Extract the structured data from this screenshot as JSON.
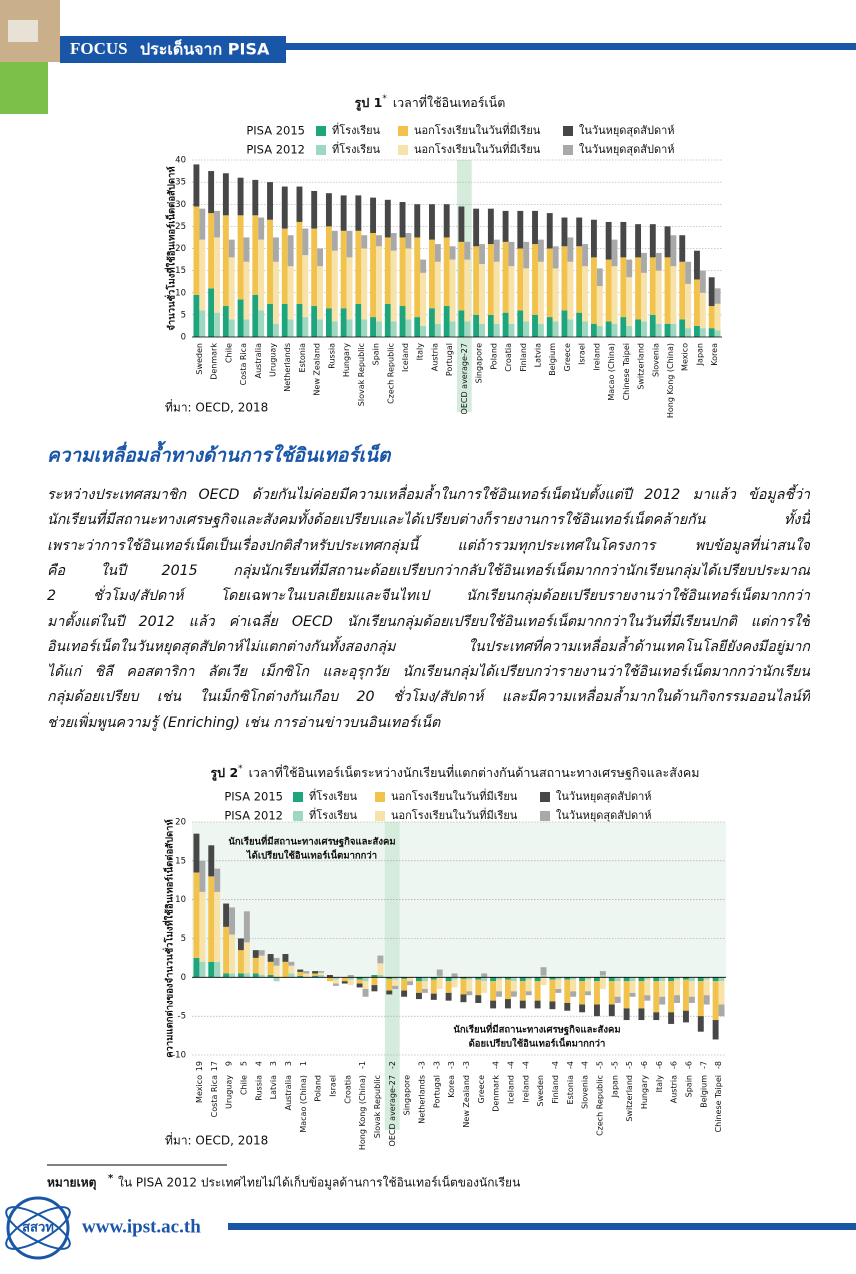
{
  "header": {
    "label": "FOCUS",
    "title": "ประเด็นจาก PISA"
  },
  "chart_data": [
    {
      "type": "bar",
      "figure_label": "รูป 1",
      "figure_mark": "*",
      "title": "เวลาที่ใช้อินเทอร์เน็ต",
      "ylabel": "จำนวนชั่วโมงที่ใช้อินเทอร์เน็ตต่อสัปดาห์",
      "categories": [
        "Sweden",
        "Denmark",
        "Chile",
        "Costa Rica",
        "Australia",
        "Uruguay",
        "Netherlands",
        "Estonia",
        "New Zealand",
        "Russia",
        "Hungary",
        "Slovak Republic",
        "Spain",
        "Czech Republic",
        "Iceland",
        "Italy",
        "Austria",
        "Portugal",
        "OECD average-27",
        "Singapore",
        "Poland",
        "Croatia",
        "Finland",
        "Latvia",
        "Belgium",
        "Greece",
        "Israel",
        "Ireland",
        "Macao (China)",
        "Chinese Taipei",
        "Switzerland",
        "Slovenia",
        "Hong Kong (China)",
        "Mexico",
        "Japan",
        "Korea"
      ],
      "highlight_index": 18,
      "ylim": [
        0,
        40
      ],
      "yticks": [
        0,
        5,
        10,
        15,
        20,
        25,
        30,
        35,
        40
      ],
      "grid": true,
      "series_groups": [
        {
          "name": "PISA 2015",
          "series": [
            {
              "name": "ที่โรงเรียน",
              "color": "#1fa57c",
              "values": [
                9.5,
                11,
                7,
                8.5,
                9.5,
                7.5,
                7.5,
                7.5,
                7,
                6.5,
                6.5,
                7.5,
                4.5,
                7.5,
                7,
                4.5,
                6.5,
                7,
                6,
                5,
                5,
                5.5,
                6,
                5,
                4.5,
                6,
                5.5,
                3,
                3.5,
                4.5,
                4,
                5,
                3,
                4,
                2.5,
                2
              ]
            },
            {
              "name": "นอกโรงเรียนในวันที่มีเรียน",
              "color": "#f1c24c",
              "values": [
                20,
                17,
                20.5,
                19,
                18,
                19,
                17,
                18.5,
                17.5,
                18.5,
                17.5,
                16.5,
                19,
                15,
                15.5,
                18,
                15.5,
                15.5,
                15.5,
                15.5,
                16,
                16,
                14,
                16,
                15.5,
                14.5,
                15,
                15,
                14,
                13.5,
                14,
                13,
                15,
                13,
                10.5,
                5
              ]
            },
            {
              "name": "ในวันหยุดสุดสัปดาห์",
              "color": "#474747",
              "values": [
                9.5,
                9.5,
                9.5,
                8.5,
                8,
                8.5,
                9.5,
                8,
                8.5,
                7.5,
                8,
                8,
                8,
                8.5,
                8,
                7.5,
                8,
                7.5,
                8,
                8.5,
                8,
                7,
                8.5,
                7.5,
                8,
                6.5,
                6.5,
                8.5,
                8.5,
                8,
                7.5,
                7.5,
                7,
                6,
                6.5,
                6.5
              ]
            }
          ]
        },
        {
          "name": "PISA 2012",
          "series": [
            {
              "name": "ที่โรงเรียน",
              "color": "#9fd8c0",
              "values": [
                6,
                5.5,
                4,
                4,
                6,
                3,
                4,
                4.5,
                4,
                3.5,
                4,
                4,
                3.5,
                3.5,
                4,
                2.5,
                3,
                3.5,
                3.5,
                3,
                3,
                3,
                3.5,
                3,
                3.5,
                4,
                3.5,
                2.5,
                3,
                2.5,
                3.5,
                3,
                3,
                2,
                2,
                1.5
              ]
            },
            {
              "name": "นอกโรงเรียนในวันที่มีเรียน",
              "color": "#f7e2a9",
              "values": [
                16,
                17,
                14,
                13,
                16,
                14,
                12,
                14,
                12,
                16,
                14,
                16,
                17,
                16,
                16,
                12,
                14,
                14,
                14,
                13.5,
                14,
                13,
                12,
                14,
                12,
                13,
                12.5,
                9,
                13,
                11,
                11,
                12,
                13,
                10,
                8,
                6
              ]
            },
            {
              "name": "ในวันหยุดสุดสัปดาห์",
              "color": "#a9a9a9",
              "values": [
                7,
                6,
                4,
                5.5,
                5,
                5.5,
                7,
                6,
                4,
                4.5,
                6,
                3,
                2.5,
                4,
                3.5,
                3,
                4,
                3,
                4,
                4.5,
                5,
                5.5,
                6,
                5,
                5,
                5.5,
                5,
                4,
                6,
                4,
                4.5,
                4,
                7,
                5,
                5,
                3.5
              ]
            }
          ]
        }
      ],
      "source": "ที่มา: OECD, 2018"
    },
    {
      "type": "bar",
      "figure_label": "รูป 2",
      "figure_mark": "*",
      "title": "เวลาที่ใช้อินเทอร์เน็ตระหว่างนักเรียนที่แตกต่างกันด้านสถานะทางเศรษฐกิจและสังคม",
      "ylabel": "ความแตกต่างของจำนวนชั่วโมงที่ใช้อินเทอร์เน็ตต่อสัปดาห์",
      "categories": [
        "Mexico",
        "Costa Rica",
        "Uruguay",
        "Chile",
        "Russia",
        "Latvia",
        "Australia",
        "Macao (China)",
        "Poland",
        "Israel",
        "Croatia",
        "Hong Kong (China)",
        "Slovak Republic",
        "OECD average-27",
        "Singapore",
        "Netherlands",
        "Portugal",
        "Korea",
        "New Zealand",
        "Greece",
        "Denmark",
        "Iceland",
        "Ireland",
        "Sweden",
        "Finland",
        "Estonia",
        "Slovenia",
        "Czech Republic",
        "Japan",
        "Switzerland",
        "Hungary",
        "Italy",
        "Austria",
        "Spain",
        "Belgium",
        "Chinese Taipei"
      ],
      "difference_labels": [
        19,
        17,
        9,
        5,
        4,
        3,
        3,
        1,
        null,
        null,
        null,
        -1,
        null,
        -2,
        null,
        -3,
        -3,
        -3,
        -3,
        null,
        -4,
        -4,
        -4,
        null,
        -4,
        -4,
        -4,
        -5,
        -5,
        -5,
        -6,
        -6,
        -6,
        -6,
        -7,
        -8
      ],
      "highlight_index": 13,
      "ylim": [
        -10,
        20
      ],
      "yticks": [
        -10,
        -5,
        0,
        5,
        10,
        15,
        20
      ],
      "grid": true,
      "annotations": [
        {
          "lines": [
            "นักเรียนที่มีสถานะทางเศรษฐกิจและสังคม",
            "ได้เปรียบใช้อินเทอร์เน็ตมากกว่า"
          ]
        },
        {
          "lines": [
            "นักเรียนที่มีสถานะทางเศรษฐกิจและสังคม",
            "ด้อยเปรียบใช้อินเทอร์เน็ตมากกว่า"
          ]
        }
      ],
      "series_groups": [
        {
          "name": "PISA 2015",
          "series": [
            {
              "name": "ที่โรงเรียน",
              "color": "#1fa57c",
              "values": [
                2.5,
                2,
                0.5,
                0.5,
                0.5,
                0.3,
                0,
                0.2,
                0.2,
                0,
                0,
                -0.3,
                0.3,
                -0.2,
                -0.2,
                -0.5,
                -0.3,
                -0.5,
                -0.2,
                -0.3,
                -0.5,
                -0.3,
                -0.5,
                -0.5,
                -0.3,
                -0.3,
                -0.5,
                -0.5,
                -0.5,
                -0.5,
                -0.5,
                -0.5,
                -0.5,
                -0.3,
                -0.5,
                -0.5
              ]
            },
            {
              "name": "นอกโรงเรียนในวันที่มีเรียน",
              "color": "#f1c24c",
              "values": [
                11,
                11,
                6,
                3,
                2,
                1.7,
                2,
                0.5,
                0.3,
                -0.5,
                -0.5,
                -0.5,
                -1,
                -1.5,
                -1.5,
                -1.5,
                -1.8,
                -1.5,
                -2,
                -2,
                -2.5,
                -2.5,
                -2.5,
                -2.5,
                -2.8,
                -3,
                -3,
                -3,
                -3,
                -3.5,
                -3.5,
                -4,
                -4,
                -4,
                -4.5,
                -5
              ]
            },
            {
              "name": "ในวันหยุดสุดสัปดาห์",
              "color": "#474747",
              "values": [
                5,
                4,
                3,
                1.5,
                1,
                1,
                1,
                0.3,
                0.3,
                0.3,
                -0.3,
                -0.5,
                -0.8,
                -0.5,
                -0.8,
                -0.8,
                -0.8,
                -1,
                -1,
                -1,
                -1,
                -1.2,
                -1,
                -1,
                -1,
                -1,
                -1,
                -1.5,
                -1.5,
                -1.5,
                -1.5,
                -1,
                -1.5,
                -1.5,
                -2,
                -2.5
              ]
            }
          ]
        },
        {
          "name": "PISA 2012",
          "series": [
            {
              "name": "ที่โรงเรียน",
              "color": "#9fd8c0",
              "values": [
                2,
                2,
                0.5,
                0.5,
                0.3,
                -0.5,
                0.5,
                0,
                0.3,
                -0.3,
                -0.3,
                -0.5,
                0.3,
                -0.3,
                0,
                -0.5,
                0.2,
                -0.3,
                -0.3,
                -0.5,
                -0.3,
                -0.5,
                -0.3,
                0.3,
                -0.3,
                -0.3,
                -0.3,
                0.3,
                -0.5,
                -0.5,
                -0.3,
                -0.5,
                -0.3,
                -0.5,
                -0.3,
                -0.5
              ]
            },
            {
              "name": "นอกโรงเรียนในวันที่มีเรียน",
              "color": "#f7e2a9",
              "values": [
                9,
                9,
                5,
                4,
                2.5,
                1.5,
                1,
                0.5,
                0.3,
                -0.5,
                -0.7,
                -1,
                1.5,
                -0.8,
                -0.5,
                -1,
                -1.5,
                -1,
                -1.5,
                -1.5,
                -1.5,
                -1.3,
                -1.5,
                -1,
                -1.2,
                -1.5,
                -1.5,
                -1.5,
                -2,
                -1.5,
                -2,
                -2,
                -2,
                -2,
                -2,
                -3
              ]
            },
            {
              "name": "ในวันหยุดสุดสัปดาห์",
              "color": "#a9a9a9",
              "values": [
                4,
                3,
                3.5,
                4,
                0.7,
                1,
                0.5,
                0.3,
                0.2,
                -0.3,
                0.3,
                -1,
                1,
                -0.4,
                -0.5,
                -0.5,
                0.8,
                0.5,
                -0.5,
                0.5,
                -0.7,
                -0.7,
                -0.5,
                1,
                -0.5,
                -0.7,
                -0.5,
                0.5,
                -0.8,
                -0.5,
                -0.7,
                -1,
                -1,
                -0.8,
                -1.2,
                -1.5
              ]
            }
          ]
        }
      ],
      "source": "ที่มา: OECD, 2018"
    }
  ],
  "section": {
    "heading": "ความเหลื่อมล้ำทางด้านการใช้อินเทอร์เน็ต",
    "lines": [
      "ระหว่างประเทศสมาชิก OECD ด้วยกันไม่ค่อยมีความเหลื่อมล้ำในการใช้อินเทอร์เน็ตนับตั้งแต่ปี 2012 มาแล้ว ข้อมูลชี้ว่า",
      "นักเรียนที่มีสถานะทางเศรษฐกิจและสังคมทั้งด้อยเปรียบและได้เปรียบต่างก็รายงานการใช้อินเทอร์เน็ตคล้ายกัน ทั้งนี้",
      "เพราะว่าการใช้อินเทอร์เน็ตเป็นเรื่องปกติสำหรับประเทศกลุ่มนี้  แต่ถ้ารวมทุกประเทศในโครงการ พบข้อมูลที่น่าสนใจ",
      "คือ ในปี 2015 กลุ่มนักเรียนที่มีสถานะด้อยเปรียบกว่ากลับใช้อินเทอร์เน็ตมากกว่านักเรียนกลุ่มได้เปรียบประมาณ",
      "2 ชั่วโมง/สัปดาห์  โดยเฉพาะในเบลเยียมและจีนไทเป นักเรียนกลุ่มด้อยเปรียบรายงานว่าใช้อินเทอร์เน็ตมากกว่า",
      "มาตั้งแต่ในปี 2012 แล้ว  ค่าเฉลี่ย OECD นักเรียนกลุ่มด้อยเปรียบใช้อินเทอร์เน็ตมากกว่าในวันที่มีเรียนปกติ แต่การใช้",
      "อินเทอร์เน็ตในวันหยุดสุดสัปดาห์ไม่แตกต่างกันทั้งสองกลุ่ม  ในประเทศที่ความเหลื่อมล้ำด้านเทคโนโลยียังคงมีอยู่มาก",
      "ได้แก่ ชิลี คอสตาริกา ลัตเวีย เม็กซิโก และอุรุกวัย นักเรียนกลุ่มได้เปรียบกว่ารายงานว่าใช้อินเทอร์เน็ตมากกว่านักเรียน",
      "กลุ่มด้อยเปรียบ เช่น ในเม็กซิโกต่างกันเกือบ 20 ชั่วโมง/สัปดาห์ และมีความเหลื่อมล้ำมากในด้านกิจกรรมออนไลน์ที่",
      "ช่วยเพิ่มพูนความรู้ (Enriching) เช่น การอ่านข่าวบนอินเทอร์เน็ต"
    ]
  },
  "note": {
    "label": "หมายเหตุ",
    "mark": "*",
    "text": "ใน PISA 2012 ประเทศไทยไม่ได้เก็บข้อมูลด้านการใช้อินเทอร์เน็ตของนักเรียน"
  },
  "footer": {
    "logo": "สสวท",
    "url": "www.ipst.ac.th"
  }
}
